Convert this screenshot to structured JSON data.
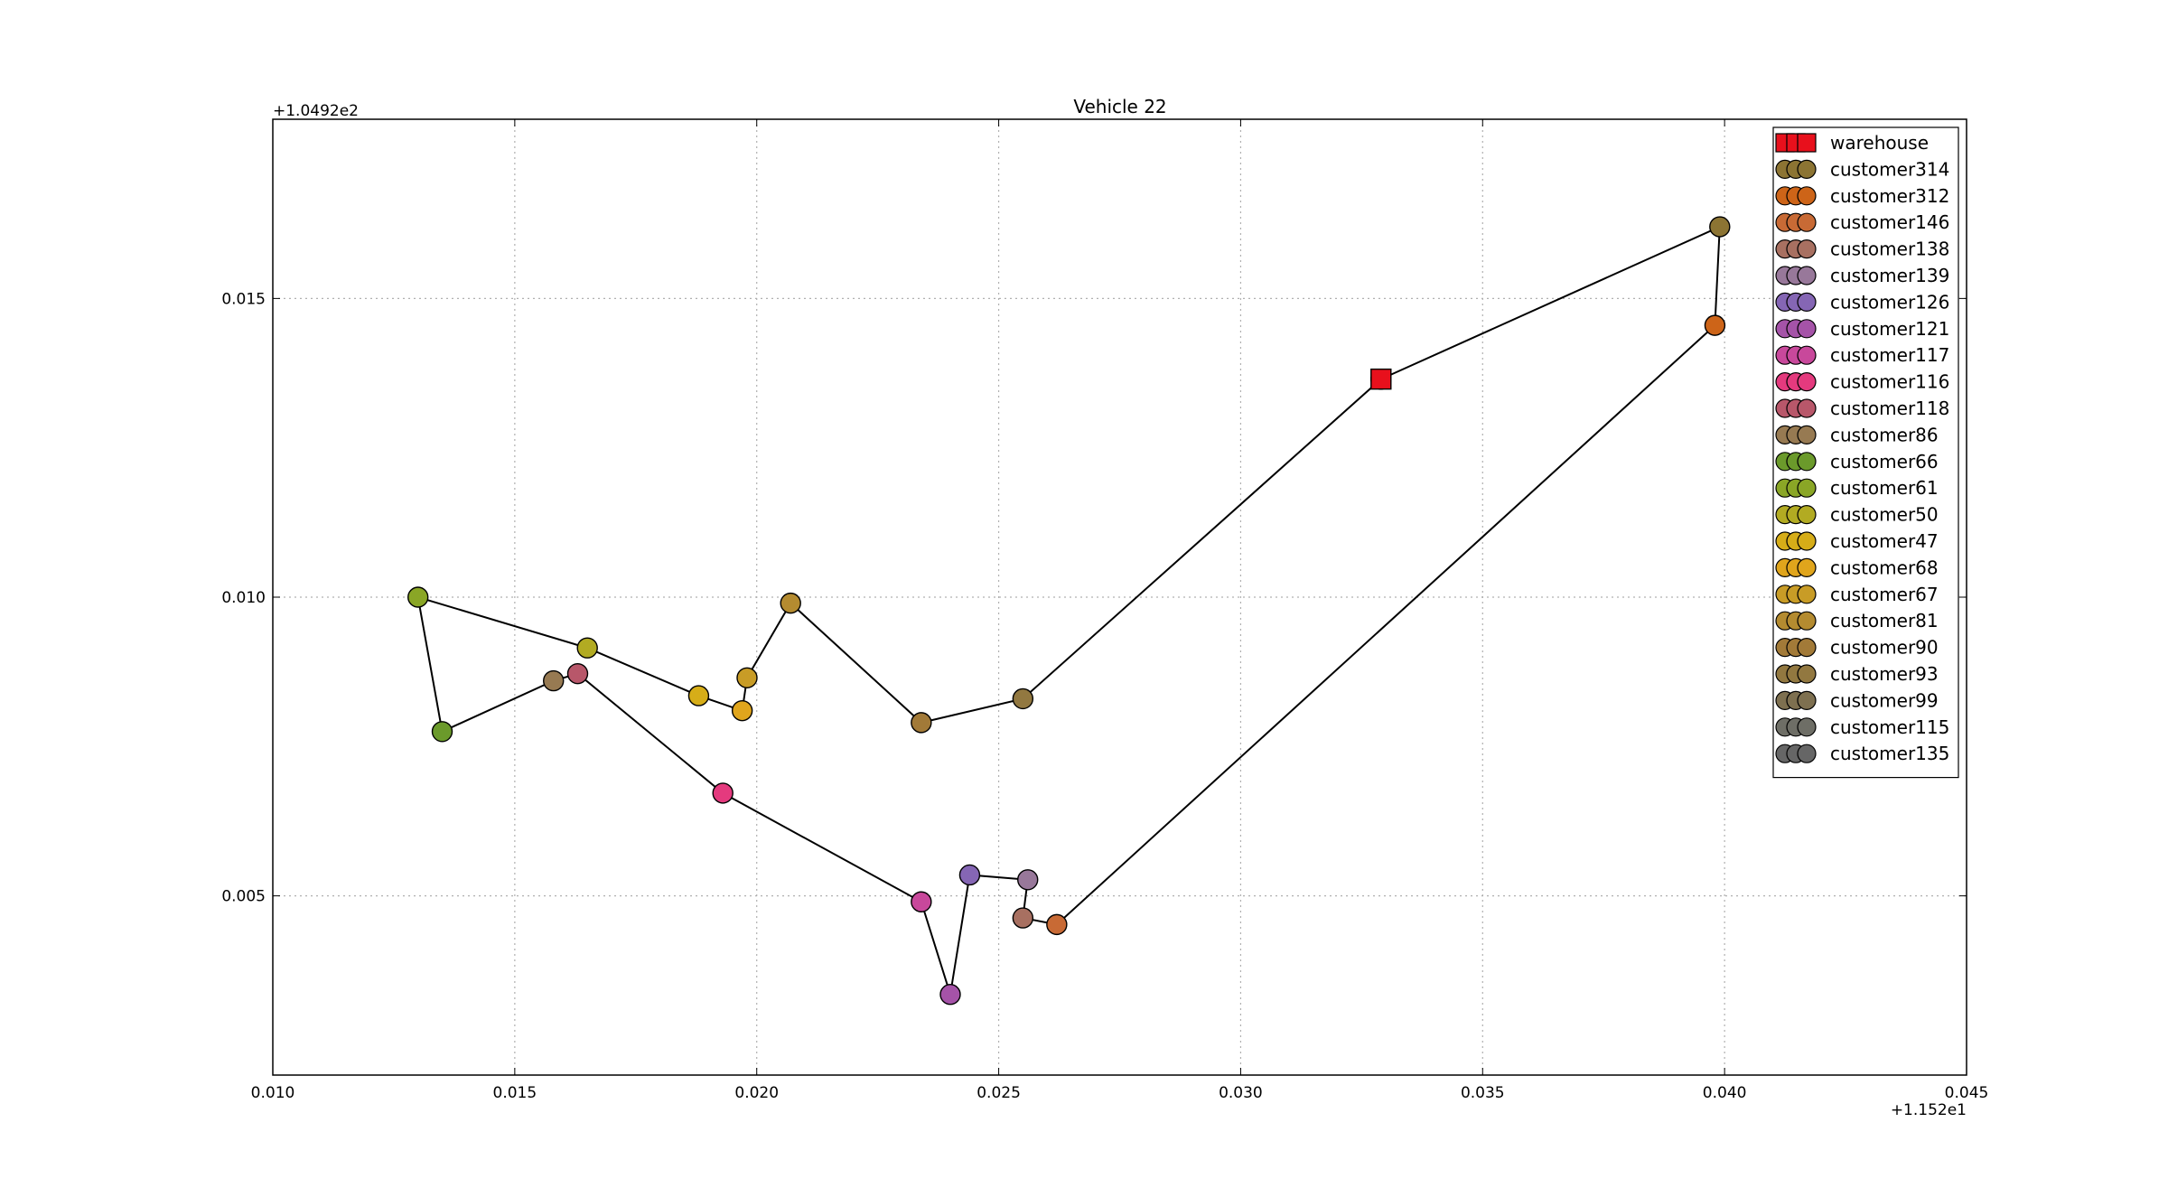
{
  "chart_data": {
    "type": "scatter",
    "title": "Vehicle 22",
    "xlabel": "",
    "ylabel": "",
    "x_offset_label": "+1.152e1",
    "y_offset_label": "+1.0492e2",
    "xlim": [
      0.01,
      0.045
    ],
    "ylim": [
      0.002,
      0.018
    ],
    "x_ticks": [
      0.01,
      0.015,
      0.02,
      0.025,
      0.03,
      0.035,
      0.04,
      0.045
    ],
    "x_tick_labels": [
      "0.010",
      "0.015",
      "0.020",
      "0.025",
      "0.030",
      "0.035",
      "0.040",
      "0.045"
    ],
    "y_ticks": [
      0.005,
      0.01,
      0.015
    ],
    "y_tick_labels": [
      "0.005",
      "0.010",
      "0.015"
    ],
    "grid": true,
    "legend_position": "top-right",
    "route": [
      {
        "name": "warehouse",
        "x": 0.0329,
        "y": 0.01365,
        "color": "#e8101c",
        "marker": "square"
      },
      {
        "name": "customer314",
        "x": 0.0399,
        "y": 0.0162,
        "color": "#8c7433",
        "marker": "circle"
      },
      {
        "name": "customer312",
        "x": 0.0398,
        "y": 0.01455,
        "color": "#cd6418",
        "marker": "circle"
      },
      {
        "name": "customer146",
        "x": 0.0262,
        "y": 0.00452,
        "color": "#c86a35",
        "marker": "circle"
      },
      {
        "name": "customer138",
        "x": 0.0255,
        "y": 0.00463,
        "color": "#a87061",
        "marker": "circle"
      },
      {
        "name": "customer139",
        "x": 0.0256,
        "y": 0.00527,
        "color": "#98789a",
        "marker": "circle"
      },
      {
        "name": "customer126",
        "x": 0.0244,
        "y": 0.00535,
        "color": "#8566b4",
        "marker": "circle"
      },
      {
        "name": "customer121",
        "x": 0.024,
        "y": 0.00335,
        "color": "#a553a8",
        "marker": "circle"
      },
      {
        "name": "customer117",
        "x": 0.0234,
        "y": 0.0049,
        "color": "#c8489b",
        "marker": "circle"
      },
      {
        "name": "customer116",
        "x": 0.0193,
        "y": 0.00672,
        "color": "#e43a7e",
        "marker": "circle"
      },
      {
        "name": "customer118",
        "x": 0.0163,
        "y": 0.00872,
        "color": "#b8576a",
        "marker": "circle"
      },
      {
        "name": "customer86",
        "x": 0.0158,
        "y": 0.0086,
        "color": "#977a52",
        "marker": "circle"
      },
      {
        "name": "customer66",
        "x": 0.0135,
        "y": 0.00775,
        "color": "#6b9a2b",
        "marker": "circle"
      },
      {
        "name": "customer61",
        "x": 0.013,
        "y": 0.01,
        "color": "#8aa626",
        "marker": "circle"
      },
      {
        "name": "customer50",
        "x": 0.0165,
        "y": 0.00915,
        "color": "#b2ab22",
        "marker": "circle"
      },
      {
        "name": "customer47",
        "x": 0.0188,
        "y": 0.00835,
        "color": "#d6ad18",
        "marker": "circle"
      },
      {
        "name": "customer68",
        "x": 0.0197,
        "y": 0.0081,
        "color": "#e0a51c",
        "marker": "circle"
      },
      {
        "name": "customer67",
        "x": 0.0198,
        "y": 0.00865,
        "color": "#c89c26",
        "marker": "circle"
      },
      {
        "name": "customer81",
        "x": 0.0207,
        "y": 0.0099,
        "color": "#b48b30",
        "marker": "circle"
      },
      {
        "name": "customer90",
        "x": 0.0234,
        "y": 0.0079,
        "color": "#a27a38",
        "marker": "circle"
      },
      {
        "name": "customer93",
        "x": 0.0255,
        "y": 0.0083,
        "color": "#927840",
        "marker": "circle"
      },
      {
        "name": "customer99",
        "x": 0.0329,
        "y": 0.01365,
        "color": "#7e7050",
        "marker": "circle"
      },
      {
        "name": "customer115",
        "x": 0.0329,
        "y": 0.01365,
        "color": "#6e6e66",
        "marker": "circle"
      },
      {
        "name": "customer135",
        "x": 0.0329,
        "y": 0.01365,
        "color": "#666666",
        "marker": "circle"
      }
    ],
    "legend": [
      {
        "label": "warehouse",
        "color": "#e8101c",
        "marker": "square"
      },
      {
        "label": "customer314",
        "color": "#8c7433",
        "marker": "circle"
      },
      {
        "label": "customer312",
        "color": "#cd6418",
        "marker": "circle"
      },
      {
        "label": "customer146",
        "color": "#c86a35",
        "marker": "circle"
      },
      {
        "label": "customer138",
        "color": "#a87061",
        "marker": "circle"
      },
      {
        "label": "customer139",
        "color": "#98789a",
        "marker": "circle"
      },
      {
        "label": "customer126",
        "color": "#8566b4",
        "marker": "circle"
      },
      {
        "label": "customer121",
        "color": "#a553a8",
        "marker": "circle"
      },
      {
        "label": "customer117",
        "color": "#c8489b",
        "marker": "circle"
      },
      {
        "label": "customer116",
        "color": "#e43a7e",
        "marker": "circle"
      },
      {
        "label": "customer118",
        "color": "#b8576a",
        "marker": "circle"
      },
      {
        "label": "customer86",
        "color": "#977a52",
        "marker": "circle"
      },
      {
        "label": "customer66",
        "color": "#6b9a2b",
        "marker": "circle"
      },
      {
        "label": "customer61",
        "color": "#8aa626",
        "marker": "circle"
      },
      {
        "label": "customer50",
        "color": "#b2ab22",
        "marker": "circle"
      },
      {
        "label": "customer47",
        "color": "#d6ad18",
        "marker": "circle"
      },
      {
        "label": "customer68",
        "color": "#e0a51c",
        "marker": "circle"
      },
      {
        "label": "customer67",
        "color": "#c89c26",
        "marker": "circle"
      },
      {
        "label": "customer81",
        "color": "#b48b30",
        "marker": "circle"
      },
      {
        "label": "customer90",
        "color": "#a27a38",
        "marker": "circle"
      },
      {
        "label": "customer93",
        "color": "#927840",
        "marker": "circle"
      },
      {
        "label": "customer99",
        "color": "#7e7050",
        "marker": "circle"
      },
      {
        "label": "customer115",
        "color": "#6e6e66",
        "marker": "circle"
      },
      {
        "label": "customer135",
        "color": "#666666",
        "marker": "circle"
      }
    ]
  }
}
